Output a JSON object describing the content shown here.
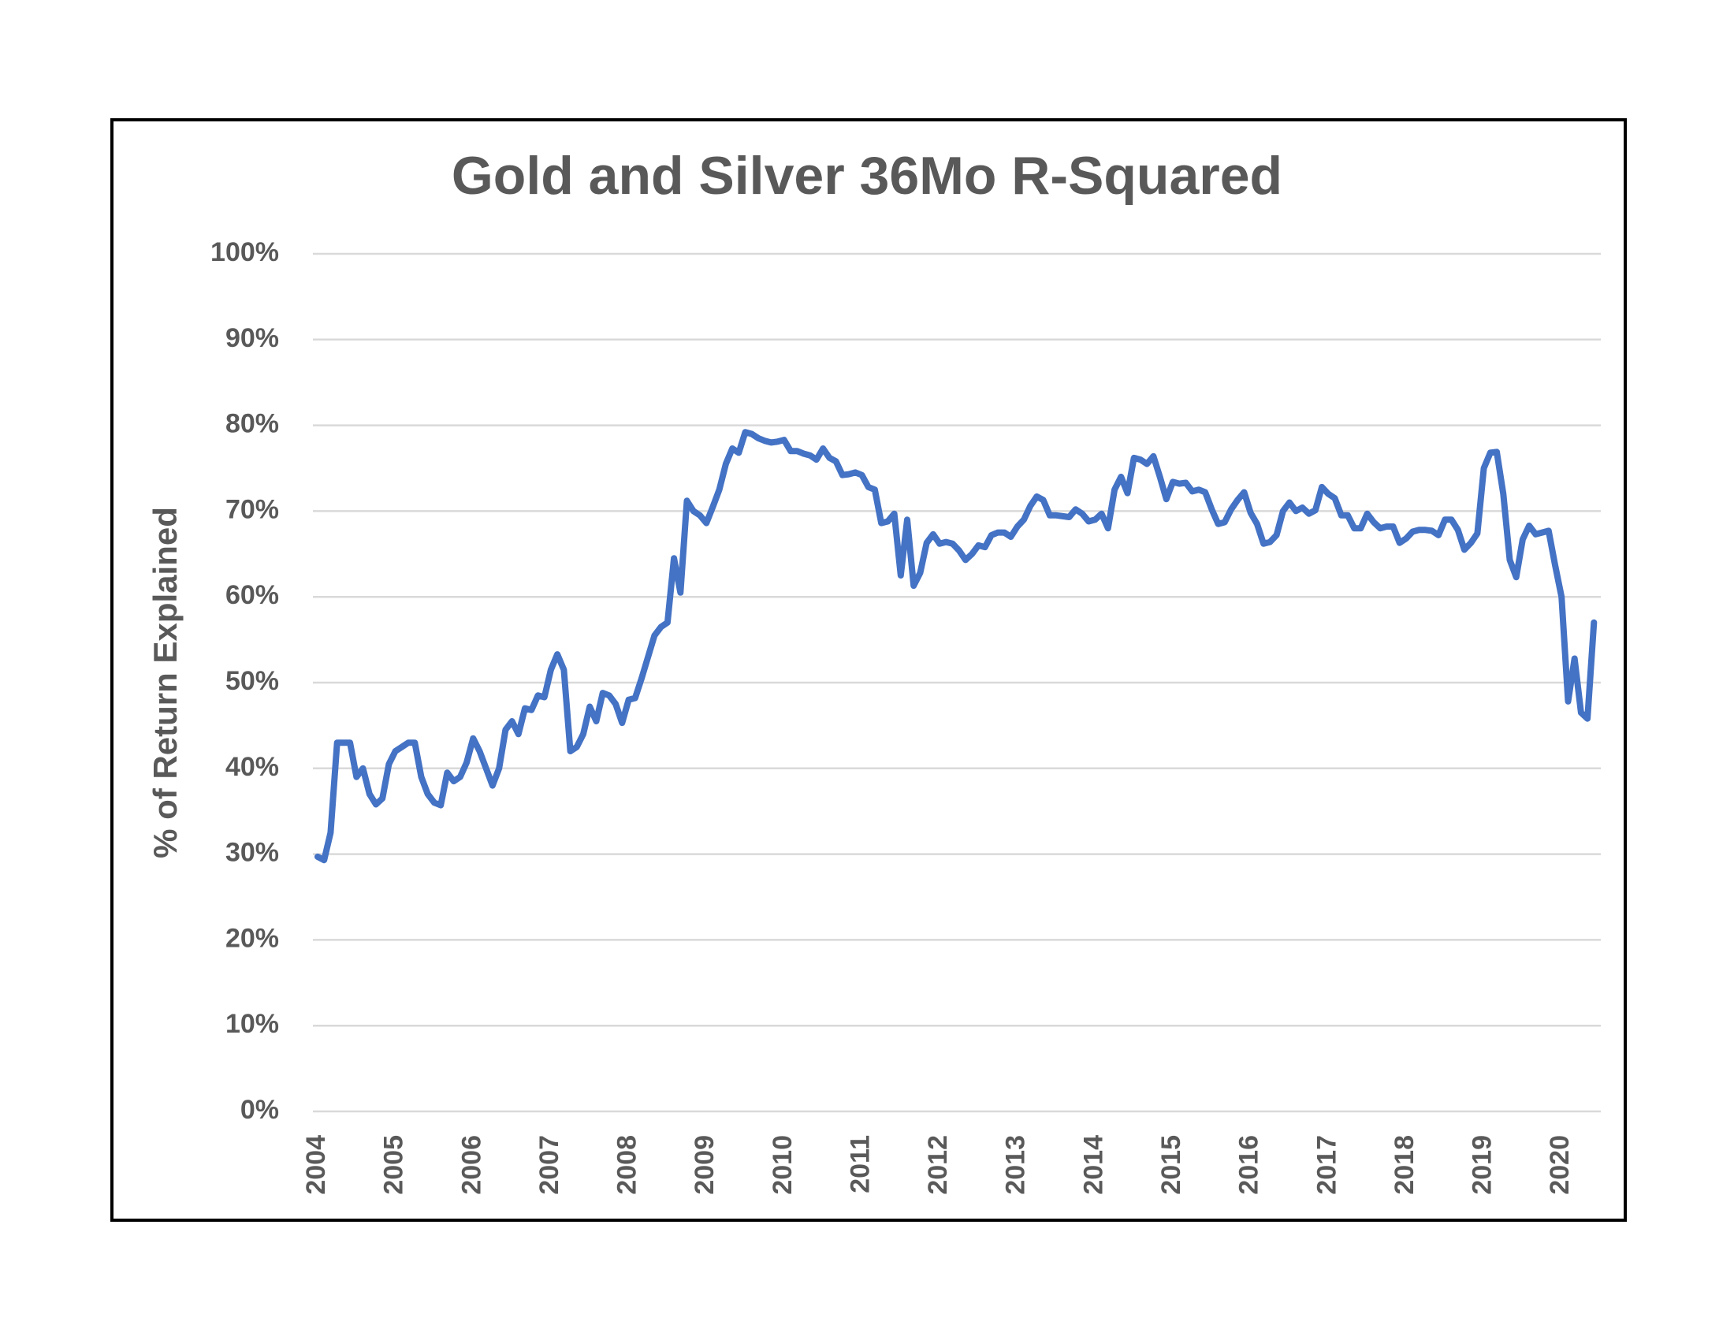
{
  "chart_data": {
    "type": "line",
    "title": "Gold and Silver 36Mo R-Squared",
    "y_label": "% of Return Explained",
    "categories": [
      "2004",
      null,
      null,
      null,
      null,
      null,
      null,
      null,
      null,
      null,
      null,
      null,
      "2005",
      null,
      null,
      null,
      null,
      null,
      null,
      null,
      null,
      null,
      null,
      null,
      "2006",
      null,
      null,
      null,
      null,
      null,
      null,
      null,
      null,
      null,
      null,
      null,
      "2007",
      null,
      null,
      null,
      null,
      null,
      null,
      null,
      null,
      null,
      null,
      null,
      "2008",
      null,
      null,
      null,
      null,
      null,
      null,
      null,
      null,
      null,
      null,
      null,
      "2009",
      null,
      null,
      null,
      null,
      null,
      null,
      null,
      null,
      null,
      null,
      null,
      "2010",
      null,
      null,
      null,
      null,
      null,
      null,
      null,
      null,
      null,
      null,
      null,
      "2011",
      null,
      null,
      null,
      null,
      null,
      null,
      null,
      null,
      null,
      null,
      null,
      "2012",
      null,
      null,
      null,
      null,
      null,
      null,
      null,
      null,
      null,
      null,
      null,
      "2013",
      null,
      null,
      null,
      null,
      null,
      null,
      null,
      null,
      null,
      null,
      null,
      "2014",
      null,
      null,
      null,
      null,
      null,
      null,
      null,
      null,
      null,
      null,
      null,
      "2015",
      null,
      null,
      null,
      null,
      null,
      null,
      null,
      null,
      null,
      null,
      null,
      "2016",
      null,
      null,
      null,
      null,
      null,
      null,
      null,
      null,
      null,
      null,
      null,
      "2017",
      null,
      null,
      null,
      null,
      null,
      null,
      null,
      null,
      null,
      null,
      null,
      "2018",
      null,
      null,
      null,
      null,
      null,
      null,
      null,
      null,
      null,
      null,
      null,
      "2019",
      null,
      null,
      null,
      null,
      null,
      null,
      null,
      null,
      null,
      null,
      null,
      "2020",
      null,
      null,
      null,
      null,
      null
    ],
    "series": [
      {
        "name": "R-Squared",
        "color": "#4472c4",
        "values": [
          29.7,
          29.3,
          32.5,
          43,
          43,
          43,
          39,
          40,
          37,
          35.8,
          36.5,
          40.5,
          42,
          42.5,
          43,
          43,
          39,
          37,
          36,
          35.7,
          39.5,
          38.5,
          39,
          40.7,
          43.5,
          42,
          40,
          38,
          40,
          44.5,
          45.5,
          44,
          47,
          46.8,
          48.5,
          48.3,
          51.5,
          53.3,
          51.5,
          42,
          42.5,
          44,
          47.2,
          45.5,
          48.8,
          48.5,
          47.5,
          45.3,
          48,
          48.2,
          50.5,
          53,
          55.5,
          56.5,
          57,
          64.5,
          60.5,
          71.2,
          70,
          69.5,
          68.6,
          70.5,
          72.5,
          75.5,
          77.3,
          76.8,
          79.2,
          79,
          78.5,
          78.2,
          78,
          78.1,
          78.3,
          77,
          77,
          76.7,
          76.5,
          76,
          77.3,
          76.2,
          75.8,
          74.2,
          74.3,
          74.5,
          74.2,
          72.8,
          72.5,
          68.6,
          68.8,
          69.7,
          62.5,
          69,
          61.3,
          62.8,
          66.3,
          67.3,
          66.2,
          66.4,
          66.2,
          65.4,
          64.3,
          65,
          66,
          65.8,
          67.2,
          67.5,
          67.5,
          67,
          68.2,
          69,
          70.6,
          71.7,
          71.3,
          69.5,
          69.5,
          69.4,
          69.3,
          70.2,
          69.7,
          68.8,
          69,
          69.7,
          68,
          72.5,
          74,
          72.1,
          76.2,
          76,
          75.5,
          76.4,
          74,
          71.4,
          73.4,
          73.2,
          73.3,
          72.3,
          72.5,
          72.2,
          70.2,
          68.5,
          68.7,
          70.2,
          71.3,
          72.2,
          69.8,
          68.5,
          66.2,
          66.4,
          67.2,
          70,
          71,
          70,
          70.4,
          69.7,
          70.1,
          72.8,
          72,
          71.5,
          69.5,
          69.5,
          68,
          68,
          69.7,
          68.7,
          68,
          68.2,
          68.2,
          66.3,
          66.8,
          67.6,
          67.8,
          67.8,
          67.7,
          67.2,
          69,
          69,
          67.8,
          65.5,
          66.3,
          67.4,
          75,
          76.8,
          76.9,
          72,
          64.3,
          62.3,
          66.7,
          68.3,
          67.3,
          67.5,
          67.7,
          63.7,
          60,
          47.8,
          52.8,
          46.5,
          45.8,
          57
        ]
      }
    ],
    "ylim": [
      0,
      100
    ],
    "yticks": [
      {
        "value": 0,
        "label": "0%"
      },
      {
        "value": 10,
        "label": "10%"
      },
      {
        "value": 20,
        "label": "20%"
      },
      {
        "value": 30,
        "label": "30%"
      },
      {
        "value": 40,
        "label": "40%"
      },
      {
        "value": 50,
        "label": "50%"
      },
      {
        "value": 60,
        "label": "60%"
      },
      {
        "value": 70,
        "label": "70%"
      },
      {
        "value": 80,
        "label": "80%"
      },
      {
        "value": 90,
        "label": "90%"
      },
      {
        "value": 100,
        "label": "100%"
      }
    ],
    "grid": true
  }
}
